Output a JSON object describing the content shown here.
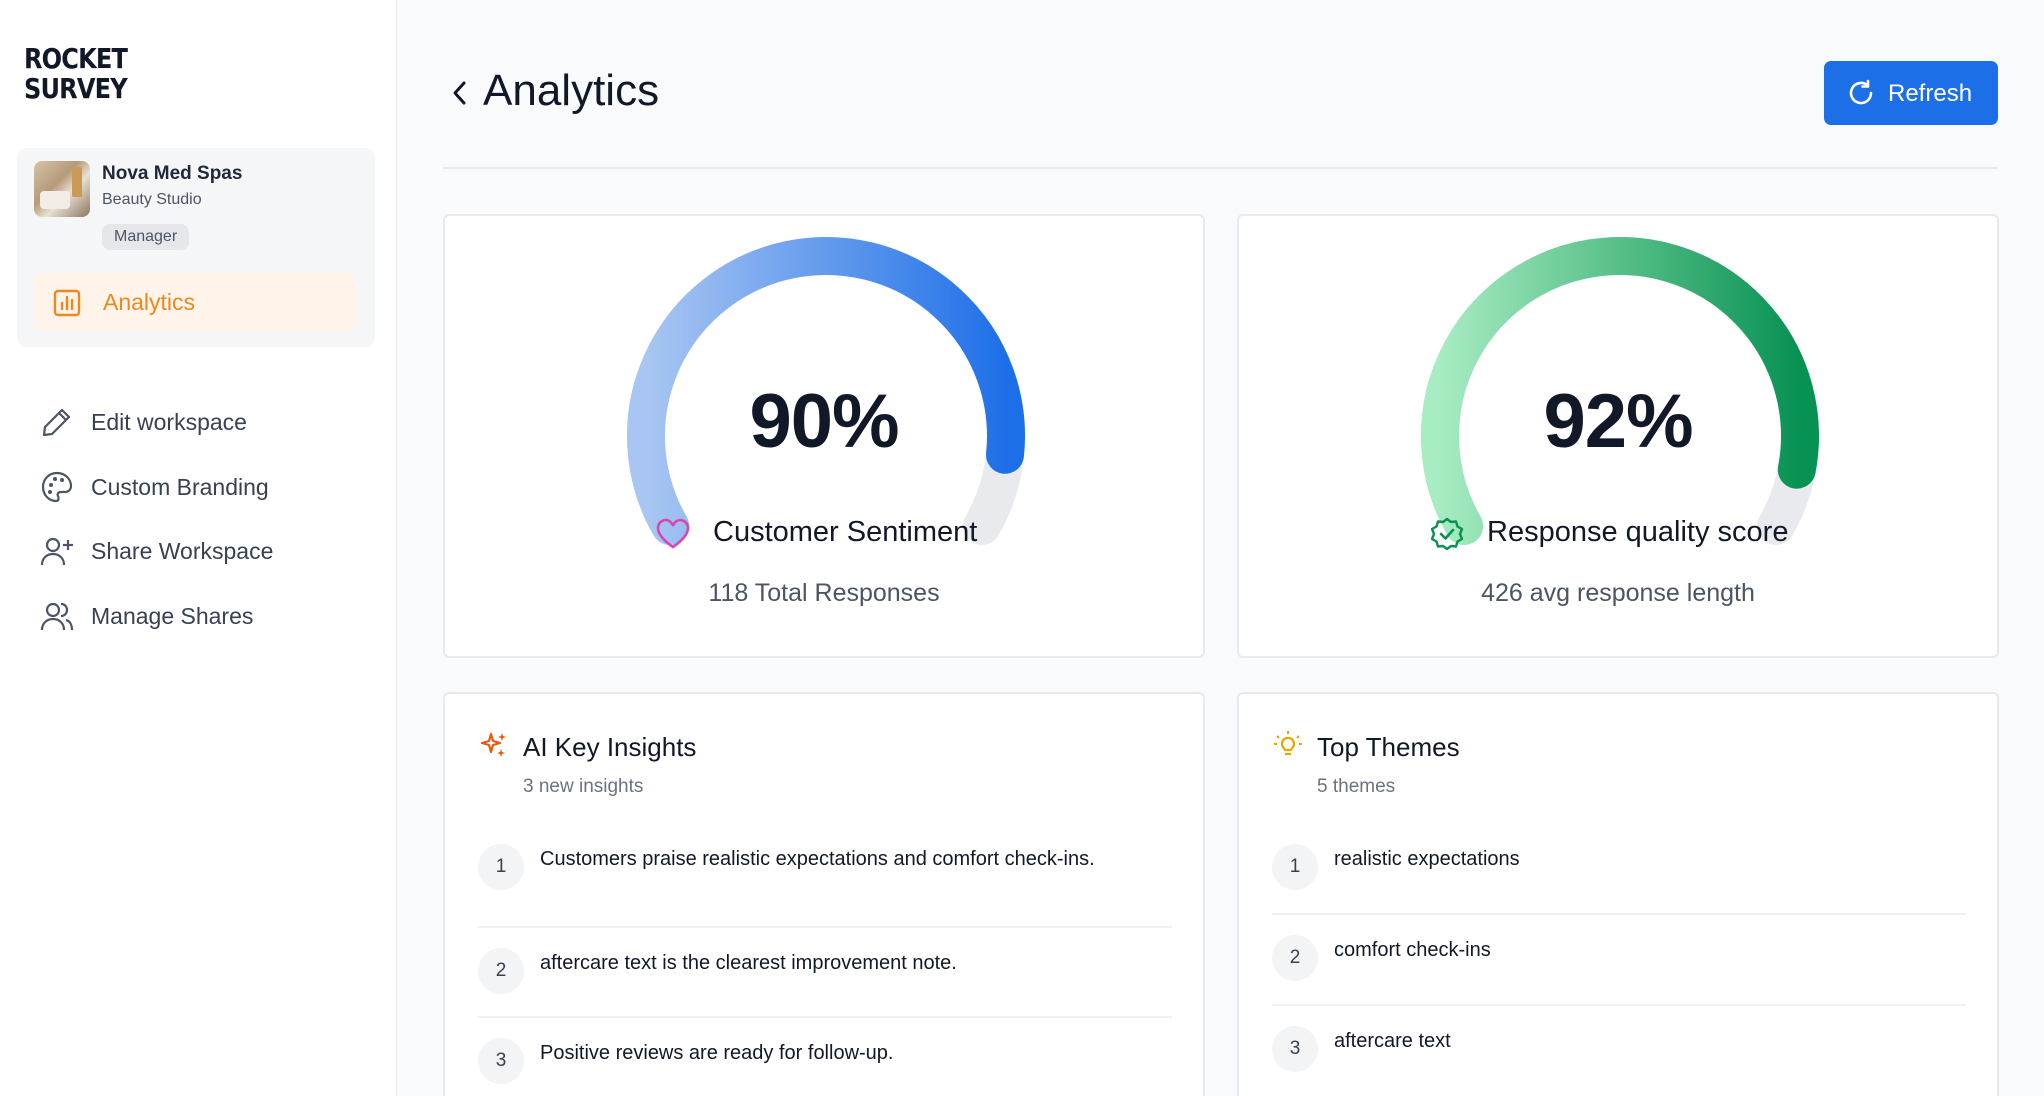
{
  "brand": {
    "logo_line1": "ROCKET",
    "logo_line2": "SURVEY"
  },
  "workspace": {
    "name": "Nova Med Spas",
    "type": "Beauty Studio",
    "role": "Manager"
  },
  "sidebar": {
    "active_item": {
      "label": "Analytics",
      "icon": "bar-chart-icon",
      "color": "#ea8a1e"
    },
    "items": [
      {
        "label": "Edit workspace",
        "icon": "pencil-icon"
      },
      {
        "label": "Custom Branding",
        "icon": "palette-icon"
      },
      {
        "label": "Share Workspace",
        "icon": "user-plus-icon"
      },
      {
        "label": "Manage Shares",
        "icon": "users-icon"
      }
    ]
  },
  "header": {
    "title": "Analytics",
    "back_icon": "chevron-left-icon",
    "refresh_label": "Refresh",
    "refresh_icon": "refresh-icon",
    "accent": "#1d6fe8"
  },
  "metrics": [
    {
      "value": "90%",
      "fraction": 0.9,
      "label": "Customer Sentiment",
      "sub": "118 Total Responses",
      "icon": "heart-icon",
      "colors": [
        "#a9c6f2",
        "#1d6fe8"
      ]
    },
    {
      "value": "92%",
      "fraction": 0.92,
      "label": "Response quality score",
      "sub": "426 avg response length",
      "icon": "badge-check-icon",
      "colors": [
        "#a7ecc2",
        "#079152"
      ]
    }
  ],
  "insights": {
    "title": "AI Key Insights",
    "subtitle": "3 new insights",
    "icon": "sparkles-icon",
    "items": [
      "Customers praise realistic expectations and comfort check-ins.",
      "aftercare text is the clearest improvement note.",
      "Positive reviews are ready for follow-up."
    ]
  },
  "themes": {
    "title": "Top Themes",
    "subtitle": "5 themes",
    "icon": "lightbulb-icon",
    "items": [
      "realistic expectations",
      "comfort check-ins",
      "aftercare text"
    ]
  }
}
